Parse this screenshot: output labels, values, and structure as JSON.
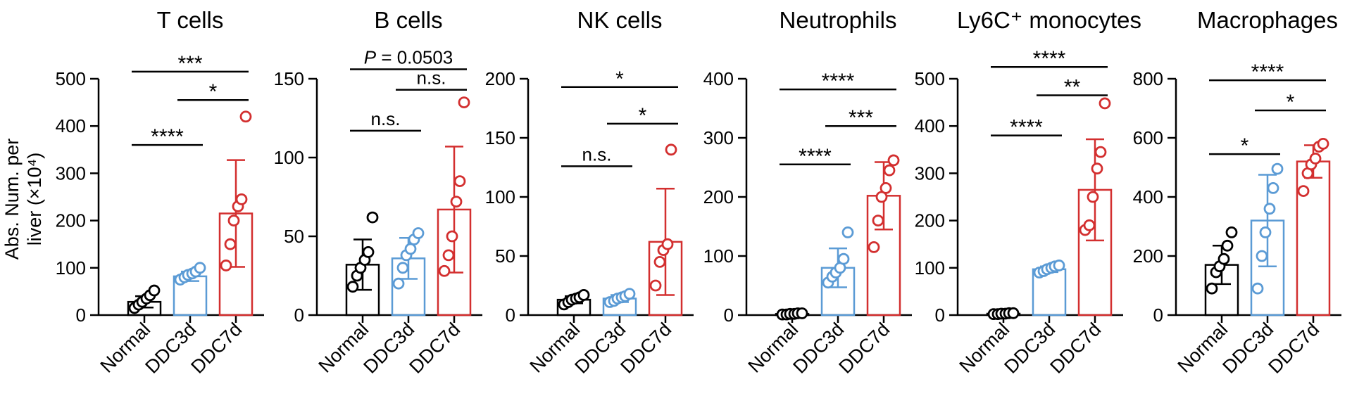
{
  "figure": {
    "ylabel_line1": "Abs. Num. per",
    "ylabel_line2": "liver (×10⁴)"
  },
  "chart_data": [
    {
      "type": "bar",
      "title": "T cells",
      "categories": [
        "Normal",
        "DDC3d",
        "DDC7d"
      ],
      "colors": [
        "#000000",
        "#5b9bd5",
        "#d32f2f"
      ],
      "ylim": [
        0,
        500
      ],
      "yticks": [
        0,
        100,
        200,
        300,
        400,
        500
      ],
      "means": [
        28,
        82,
        215
      ],
      "sd": [
        12,
        10,
        113
      ],
      "points": [
        [
          15,
          22,
          28,
          35,
          42,
          52
        ],
        [
          75,
          80,
          85,
          88,
          92,
          100
        ],
        [
          105,
          150,
          200,
          230,
          245,
          420
        ]
      ],
      "significance": [
        {
          "from": 0,
          "to": 1,
          "label": "****",
          "y": 360
        },
        {
          "from": 1,
          "to": 2,
          "label": "*",
          "y": 455
        },
        {
          "from": 0,
          "to": 2,
          "label": "***",
          "y": 515
        }
      ]
    },
    {
      "type": "bar",
      "title": "B cells",
      "categories": [
        "Normal",
        "DDC3d",
        "DDC7d"
      ],
      "colors": [
        "#000000",
        "#5b9bd5",
        "#d32f2f"
      ],
      "ylim": [
        0,
        150
      ],
      "yticks": [
        0,
        50,
        100,
        150
      ],
      "means": [
        32,
        36,
        67
      ],
      "sd": [
        16,
        13,
        40
      ],
      "points": [
        [
          18,
          25,
          30,
          35,
          40,
          62
        ],
        [
          20,
          30,
          38,
          42,
          48,
          52
        ],
        [
          28,
          38,
          50,
          72,
          85,
          135
        ]
      ],
      "significance": [
        {
          "from": 0,
          "to": 1,
          "label": "n.s.",
          "y": 117
        },
        {
          "from": 1,
          "to": 2,
          "label": "n.s.",
          "y": 143
        },
        {
          "from": 0,
          "to": 2,
          "label": "P = 0.0503",
          "y": 156
        }
      ]
    },
    {
      "type": "bar",
      "title": "NK cells",
      "categories": [
        "Normal",
        "DDC3d",
        "DDC7d"
      ],
      "colors": [
        "#000000",
        "#5b9bd5",
        "#d32f2f"
      ],
      "ylim": [
        0,
        200
      ],
      "yticks": [
        0,
        50,
        100,
        150,
        200
      ],
      "means": [
        13,
        14,
        62
      ],
      "sd": [
        3,
        3,
        45
      ],
      "points": [
        [
          9,
          11,
          13,
          14,
          15,
          17
        ],
        [
          11,
          12,
          14,
          15,
          16,
          18
        ],
        [
          25,
          45,
          55,
          60,
          140
        ]
      ],
      "significance": [
        {
          "from": 0,
          "to": 1,
          "label": "n.s.",
          "y": 126
        },
        {
          "from": 1,
          "to": 2,
          "label": "*",
          "y": 162
        },
        {
          "from": 0,
          "to": 2,
          "label": "*",
          "y": 193
        }
      ]
    },
    {
      "type": "bar",
      "title": "Neutrophils",
      "categories": [
        "Normal",
        "DDC3d",
        "DDC7d"
      ],
      "colors": [
        "#000000",
        "#5b9bd5",
        "#d32f2f"
      ],
      "ylim": [
        0,
        400
      ],
      "yticks": [
        0,
        100,
        200,
        300,
        400
      ],
      "means": [
        2,
        80,
        202
      ],
      "sd": [
        1,
        33,
        57
      ],
      "points": [
        [
          1,
          1,
          2,
          2,
          3,
          3
        ],
        [
          55,
          65,
          72,
          80,
          95,
          140
        ],
        [
          115,
          160,
          200,
          215,
          245,
          262
        ]
      ],
      "significance": [
        {
          "from": 0,
          "to": 1,
          "label": "****",
          "y": 255
        },
        {
          "from": 1,
          "to": 2,
          "label": "***",
          "y": 320
        },
        {
          "from": 0,
          "to": 2,
          "label": "****",
          "y": 382
        }
      ]
    },
    {
      "type": "bar",
      "title": "Ly6C⁺ monocytes",
      "categories": [
        "Normal",
        "DDC3d",
        "DDC7d"
      ],
      "colors": [
        "#000000",
        "#5b9bd5",
        "#d32f2f"
      ],
      "ylim": [
        0,
        500
      ],
      "yticks": [
        0,
        100,
        200,
        300,
        400,
        500
      ],
      "means": [
        3,
        97,
        265
      ],
      "sd": [
        1,
        6,
        107
      ],
      "points": [
        [
          2,
          2,
          3,
          3,
          4,
          4
        ],
        [
          90,
          93,
          97,
          100,
          103,
          105
        ],
        [
          180,
          190,
          250,
          310,
          345,
          448
        ]
      ],
      "significance": [
        {
          "from": 0,
          "to": 1,
          "label": "****",
          "y": 380
        },
        {
          "from": 1,
          "to": 2,
          "label": "**",
          "y": 465
        },
        {
          "from": 0,
          "to": 2,
          "label": "****",
          "y": 525
        }
      ]
    },
    {
      "type": "bar",
      "title": "Macrophages",
      "categories": [
        "Normal",
        "DDC3d",
        "DDC7d"
      ],
      "colors": [
        "#000000",
        "#5b9bd5",
        "#d32f2f"
      ],
      "ylim": [
        0,
        800
      ],
      "yticks": [
        0,
        200,
        400,
        600,
        800
      ],
      "means": [
        170,
        320,
        520
      ],
      "sd": [
        65,
        155,
        55
      ],
      "points": [
        [
          90,
          145,
          165,
          190,
          235,
          280
        ],
        [
          90,
          200,
          280,
          360,
          430,
          495
        ],
        [
          420,
          480,
          510,
          530,
          570,
          580
        ]
      ],
      "significance": [
        {
          "from": 0,
          "to": 1,
          "label": "*",
          "y": 545
        },
        {
          "from": 1,
          "to": 2,
          "label": "*",
          "y": 693
        },
        {
          "from": 0,
          "to": 2,
          "label": "****",
          "y": 795
        }
      ]
    }
  ]
}
